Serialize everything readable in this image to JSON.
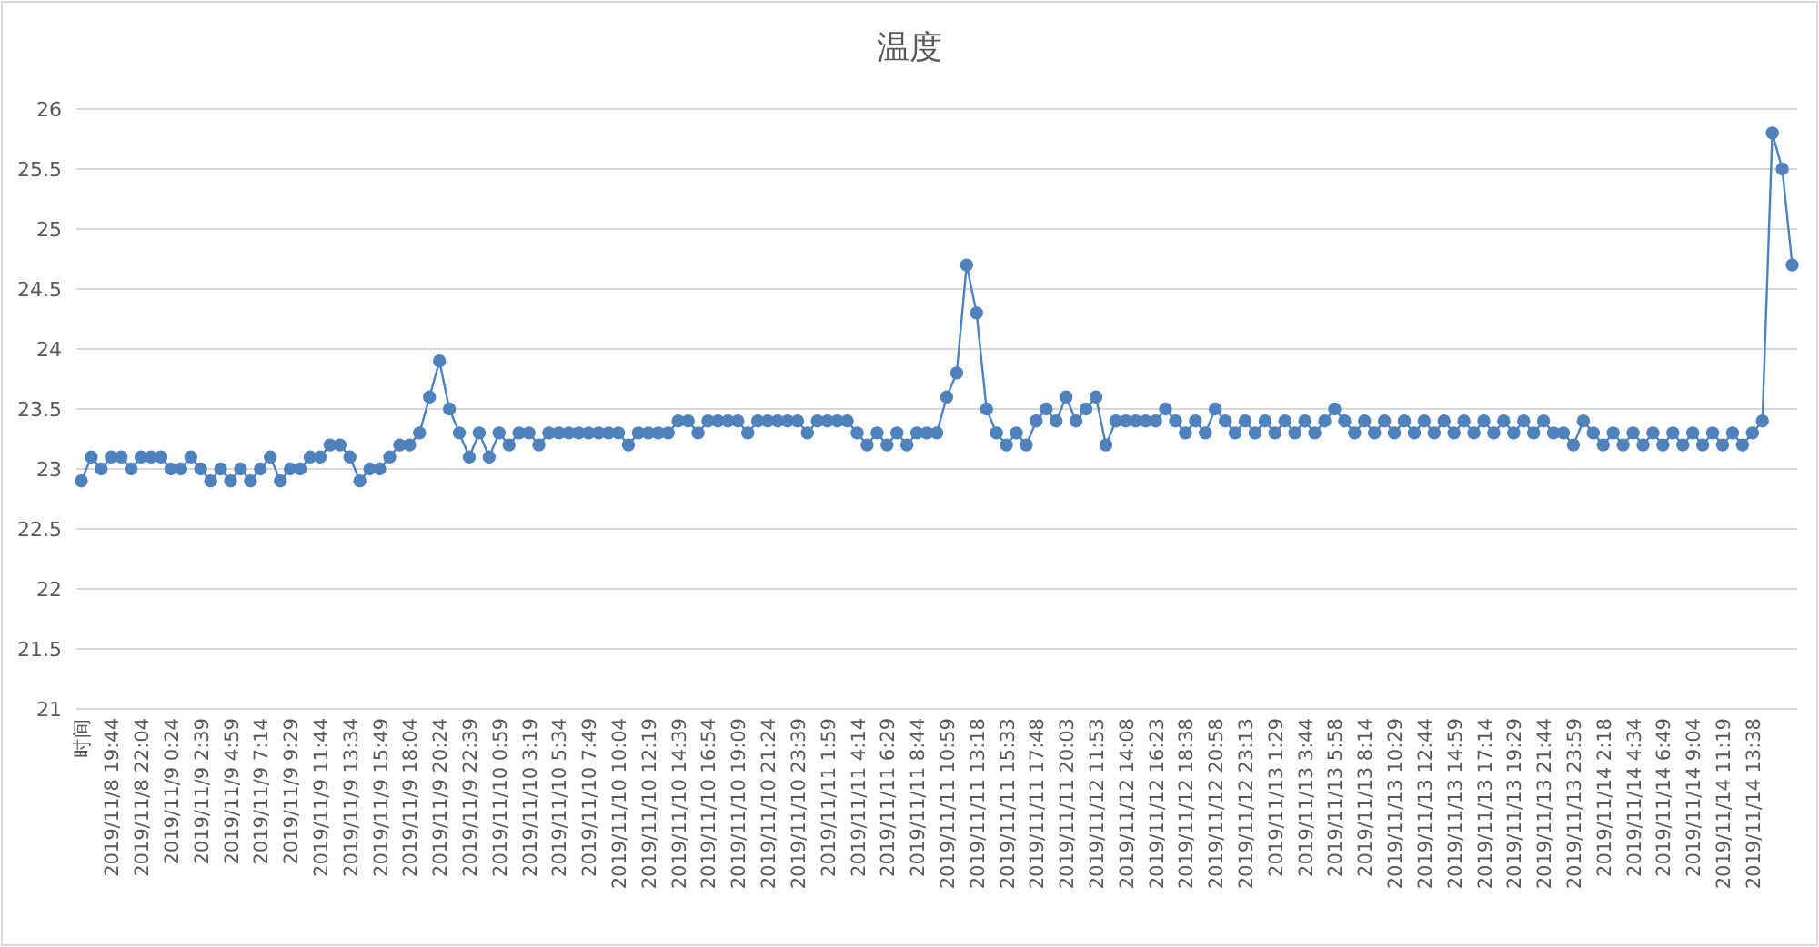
{
  "chart_data": {
    "type": "line",
    "title": "温度",
    "categories": [
      "时间",
      null,
      null,
      "2019/11/8 19:44",
      null,
      null,
      "2019/11/8 22:04",
      null,
      null,
      "2019/11/9 0:24",
      null,
      null,
      "2019/11/9 2:39",
      null,
      null,
      "2019/11/9 4:59",
      null,
      null,
      "2019/11/9 7:14",
      null,
      null,
      "2019/11/9 9:29",
      null,
      null,
      "2019/11/9 11:44",
      null,
      null,
      "2019/11/9 13:34",
      null,
      null,
      "2019/11/9 15:49",
      null,
      null,
      "2019/11/9 18:04",
      null,
      null,
      "2019/11/9 20:24",
      null,
      null,
      "2019/11/9 22:39",
      null,
      null,
      "2019/11/10 0:59",
      null,
      null,
      "2019/11/10 3:19",
      null,
      null,
      "2019/11/10 5:34",
      null,
      null,
      "2019/11/10 7:49",
      null,
      null,
      "2019/11/10 10:04",
      null,
      null,
      "2019/11/10 12:19",
      null,
      null,
      "2019/11/10 14:39",
      null,
      null,
      "2019/11/10 16:54",
      null,
      null,
      "2019/11/10 19:09",
      null,
      null,
      "2019/11/10 21:24",
      null,
      null,
      "2019/11/10 23:39",
      null,
      null,
      "2019/11/11 1:59",
      null,
      null,
      "2019/11/11 4:14",
      null,
      null,
      "2019/11/11 6:29",
      null,
      null,
      "2019/11/11 8:44",
      null,
      null,
      "2019/11/11 10:59",
      null,
      null,
      "2019/11/11 13:18",
      null,
      null,
      "2019/11/11 15:33",
      null,
      null,
      "2019/11/11 17:48",
      null,
      null,
      "2019/11/11 20:03",
      null,
      null,
      "2019/11/12 11:53",
      null,
      null,
      "2019/11/12 14:08",
      null,
      null,
      "2019/11/12 16:23",
      null,
      null,
      "2019/11/12 18:38",
      null,
      null,
      "2019/11/12 20:58",
      null,
      null,
      "2019/11/12 23:13",
      null,
      null,
      "2019/11/13 1:29",
      null,
      null,
      "2019/11/13 3:44",
      null,
      null,
      "2019/11/13 5:58",
      null,
      null,
      "2019/11/13 8:14",
      null,
      null,
      "2019/11/13 10:29",
      null,
      null,
      "2019/11/13 12:44",
      null,
      null,
      "2019/11/13 14:59",
      null,
      null,
      "2019/11/13 17:14",
      null,
      null,
      "2019/11/13 19:29",
      null,
      null,
      "2019/11/13 21:44",
      null,
      null,
      "2019/11/13 23:59",
      null,
      null,
      "2019/11/14 2:18",
      null,
      null,
      "2019/11/14 4:34",
      null,
      null,
      "2019/11/14 6:49",
      null,
      null,
      "2019/11/14 9:04",
      null,
      null,
      "2019/11/14 11:19",
      null,
      null,
      "2019/11/14 13:38",
      null,
      null,
      null,
      null
    ],
    "series": [
      {
        "color": "#4f81bd",
        "values": [
          22.9,
          23.1,
          23.0,
          23.1,
          23.1,
          23.0,
          23.1,
          23.1,
          23.1,
          23.0,
          23.0,
          23.1,
          23.0,
          22.9,
          23.0,
          22.9,
          23.0,
          22.9,
          23.0,
          23.1,
          22.9,
          23.0,
          23.0,
          23.1,
          23.1,
          23.2,
          23.2,
          23.1,
          22.9,
          23.0,
          23.0,
          23.1,
          23.2,
          23.2,
          23.3,
          23.6,
          23.9,
          23.5,
          23.3,
          23.1,
          23.3,
          23.1,
          23.3,
          23.2,
          23.3,
          23.3,
          23.2,
          23.3,
          23.3,
          23.3,
          23.3,
          23.3,
          23.3,
          23.3,
          23.3,
          23.2,
          23.3,
          23.3,
          23.3,
          23.3,
          23.4,
          23.4,
          23.3,
          23.4,
          23.4,
          23.4,
          23.4,
          23.3,
          23.4,
          23.4,
          23.4,
          23.4,
          23.4,
          23.3,
          23.4,
          23.4,
          23.4,
          23.4,
          23.3,
          23.2,
          23.3,
          23.2,
          23.3,
          23.2,
          23.3,
          23.3,
          23.3,
          23.6,
          23.8,
          24.7,
          24.3,
          23.5,
          23.3,
          23.2,
          23.3,
          23.2,
          23.4,
          23.5,
          23.4,
          23.6,
          23.4,
          23.5,
          23.6,
          23.2,
          23.4,
          23.4,
          23.4,
          23.4,
          23.4,
          23.5,
          23.4,
          23.3,
          23.4,
          23.3,
          23.5,
          23.4,
          23.3,
          23.4,
          23.3,
          23.4,
          23.3,
          23.4,
          23.3,
          23.4,
          23.3,
          23.4,
          23.5,
          23.4,
          23.3,
          23.4,
          23.3,
          23.4,
          23.3,
          23.4,
          23.3,
          23.4,
          23.3,
          23.4,
          23.3,
          23.4,
          23.3,
          23.4,
          23.3,
          23.4,
          23.3,
          23.4,
          23.3,
          23.4,
          23.3,
          23.3,
          23.2,
          23.4,
          23.3,
          23.2,
          23.3,
          23.2,
          23.3,
          23.2,
          23.3,
          23.2,
          23.3,
          23.2,
          23.3,
          23.2,
          23.3,
          23.2,
          23.3,
          23.2,
          23.3,
          23.4,
          25.8,
          25.5,
          24.7
        ]
      }
    ],
    "ylim": [
      21,
      26
    ],
    "yticks": [
      21,
      21.5,
      22,
      22.5,
      23,
      23.5,
      24,
      24.5,
      25,
      25.5,
      26
    ],
    "grid": "y",
    "marker": "circle",
    "line_style": "solid"
  }
}
